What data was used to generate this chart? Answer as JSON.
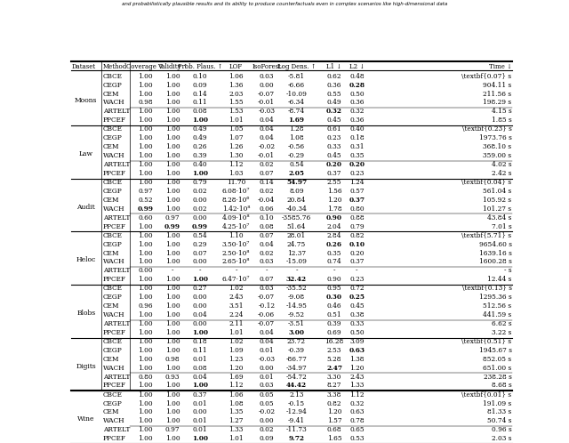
{
  "title": "and probabilistically plausible results and its ability to produce counterfactuals even in complex scenarios like high-dimensional data",
  "datasets": [
    {
      "name": "Moons",
      "rows": [
        [
          "CBCE",
          "1.00",
          "1.00",
          "0.10",
          "1.06",
          "0.03",
          "-5.81",
          "0.62",
          "0.48",
          "\\textbf{0.07} s"
        ],
        [
          "CEGP",
          "1.00",
          "1.00",
          "0.09",
          "1.36",
          "0.00",
          "-6.66",
          "0.36",
          "\\textbf{0.28}",
          "904.11 s"
        ],
        [
          "CEM",
          "1.00",
          "1.00",
          "0.14",
          "2.03",
          "-0.07",
          "-10.09",
          "0.55",
          "0.50",
          "211.56 s"
        ],
        [
          "WACH",
          "0.98",
          "1.00",
          "0.11",
          "1.55",
          "-0.01",
          "-6.34",
          "0.49",
          "0.36",
          "198.29 s"
        ]
      ],
      "sep_rows": [
        [
          "ARTELT",
          "1.00",
          "1.00",
          "0.08",
          "1.53",
          "-0.03",
          "-8.74",
          "\\textbf{0.32}",
          "0.32",
          "4.15 s"
        ],
        [
          "PPCEF",
          "1.00",
          "1.00",
          "\\textbf{1.00}",
          "1.01",
          "0.04",
          "\\textbf{1.69}",
          "0.45",
          "0.36",
          "1.85 s"
        ]
      ]
    },
    {
      "name": "Law",
      "rows": [
        [
          "CBCE",
          "1.00",
          "1.00",
          "0.49",
          "1.05",
          "0.04",
          "1.28",
          "0.61",
          "0.40",
          "\\textbf{0.23} s"
        ],
        [
          "CEGP",
          "1.00",
          "1.00",
          "0.49",
          "1.07",
          "0.04",
          "1.08",
          "0.23",
          "0.18",
          "1973.76 s"
        ],
        [
          "CEM",
          "1.00",
          "1.00",
          "0.26",
          "1.26",
          "-0.02",
          "-0.56",
          "0.33",
          "0.31",
          "368.10 s"
        ],
        [
          "WACH",
          "1.00",
          "1.00",
          "0.39",
          "1.30",
          "-0.01",
          "-0.29",
          "0.45",
          "0.35",
          "359.00 s"
        ]
      ],
      "sep_rows": [
        [
          "ARTELT",
          "1.00",
          "1.00",
          "0.40",
          "1.12",
          "0.02",
          "0.54",
          "\\textbf{0.20}",
          "\\textbf{0.20}",
          "4.02 s"
        ],
        [
          "PPCEF",
          "1.00",
          "1.00",
          "\\textbf{1.00}",
          "1.03",
          "0.07",
          "\\textbf{2.05}",
          "0.37",
          "0.23",
          "2.42 s"
        ]
      ]
    },
    {
      "name": "Audit",
      "rows": [
        [
          "CBCE",
          "1.00",
          "1.00",
          "0.79",
          "11.70",
          "0.14",
          "\\textbf{54.97}",
          "2.55",
          "1.24",
          "\\textbf{0.04} s"
        ],
        [
          "CEGP",
          "0.97",
          "1.00",
          "0.02",
          "6.08·10⁷",
          "0.02",
          "8.09",
          "1.56",
          "0.57",
          "561.04 s"
        ],
        [
          "CEM",
          "0.52",
          "1.00",
          "0.00",
          "8.28·10⁶",
          "-0.04",
          "20.84",
          "1.20",
          "\\textbf{0.37}",
          "105.92 s"
        ],
        [
          "WACH",
          "\\textbf{0.99}",
          "1.00",
          "0.02",
          "1.42·10⁸",
          "0.06",
          "-40.34",
          "1.78",
          "0.80",
          "101.27 s"
        ]
      ],
      "sep_rows": [
        [
          "ARTELT",
          "0.60",
          "0.97",
          "0.00",
          "4.09·10⁸",
          "0.10",
          "-3585.76",
          "\\textbf{0.90}",
          "0.88",
          "43.84 s"
        ],
        [
          "PPCEF",
          "1.00",
          "\\textbf{0.99}",
          "\\textbf{0.99}",
          "4.25·10⁷",
          "0.08",
          "51.64",
          "2.04",
          "0.79",
          "7.01 s"
        ]
      ]
    },
    {
      "name": "Heloc",
      "rows": [
        [
          "CBCE",
          "1.00",
          "1.00",
          "0.54",
          "1.10",
          "0.07",
          "28.01",
          "2.84",
          "0.82",
          "\\textbf{5.71} s"
        ],
        [
          "CEGP",
          "1.00",
          "1.00",
          "0.29",
          "3.50·10⁷",
          "0.04",
          "24.75",
          "\\textbf{0.26}",
          "\\textbf{0.10}",
          "9654.60 s"
        ],
        [
          "CEM",
          "1.00",
          "1.00",
          "0.07",
          "2.50·10⁸",
          "0.02",
          "12.37",
          "0.35",
          "0.20",
          "1639.16 s"
        ],
        [
          "WACH",
          "1.00",
          "1.00",
          "0.00",
          "2.65·10⁸",
          "0.03",
          "-15.09",
          "0.74",
          "0.37",
          "1600.28 s"
        ]
      ],
      "sep_rows": [
        [
          "ARTELT",
          "0.00",
          "-",
          "-",
          "-",
          "-",
          "-",
          "-",
          "-",
          "- s"
        ],
        [
          "PPCEF",
          "1.00",
          "1.00",
          "\\textbf{1.00}",
          "6.47·10⁷",
          "0.07",
          "\\textbf{32.42}",
          "0.90",
          "0.23",
          "12.44 s"
        ]
      ]
    },
    {
      "name": "Blobs",
      "rows": [
        [
          "CBCE",
          "1.00",
          "1.00",
          "0.27",
          "1.02",
          "0.03",
          "-35.52",
          "0.95",
          "0.72",
          "\\textbf{0.13} s"
        ],
        [
          "CEGP",
          "1.00",
          "1.00",
          "0.00",
          "2.43",
          "-0.07",
          "-9.08",
          "\\textbf{0.30}",
          "\\textbf{0.25}",
          "1295.36 s"
        ],
        [
          "CEM",
          "0.96",
          "1.00",
          "0.00",
          "3.51",
          "-0.12",
          "-14.95",
          "0.46",
          "0.45",
          "512.56 s"
        ],
        [
          "WACH",
          "1.00",
          "1.00",
          "0.04",
          "2.24",
          "-0.06",
          "-9.52",
          "0.51",
          "0.38",
          "441.59 s"
        ]
      ],
      "sep_rows": [
        [
          "ARTELT",
          "1.00",
          "1.00",
          "0.00",
          "2.11",
          "-0.07",
          "-3.51",
          "0.39",
          "0.33",
          "6.62 s"
        ],
        [
          "PPCEF",
          "1.00",
          "1.00",
          "\\textbf{1.00}",
          "1.01",
          "0.04",
          "\\textbf{3.00}",
          "0.69",
          "0.50",
          "3.22 s"
        ]
      ]
    },
    {
      "name": "Digits",
      "rows": [
        [
          "CBCE",
          "1.00",
          "1.00",
          "0.18",
          "1.02",
          "0.04",
          "23.72",
          "16.28",
          "3.09",
          "\\textbf{0.51} s"
        ],
        [
          "CEGP",
          "1.00",
          "1.00",
          "0.11",
          "1.09",
          "0.01",
          "-0.39",
          "2.53",
          "\\textbf{0.63}",
          "1945.67 s"
        ],
        [
          "CEM",
          "1.00",
          "0.98",
          "0.01",
          "1.23",
          "-0.03",
          "-86.77",
          "5.28",
          "1.38",
          "852.05 s"
        ],
        [
          "WACH",
          "1.00",
          "1.00",
          "0.08",
          "1.20",
          "0.00",
          "-34.97",
          "\\textbf{2.47}",
          "1.20",
          "651.00 s"
        ]
      ],
      "sep_rows": [
        [
          "ARTELT",
          "0.80",
          "0.93",
          "0.04",
          "1.69",
          "0.01",
          "-54.72",
          "3.30",
          "2.43",
          "238.28 s"
        ],
        [
          "PPCEF",
          "1.00",
          "1.00",
          "\\textbf{1.00}",
          "1.12",
          "0.03",
          "\\textbf{44.42}",
          "8.27",
          "1.33",
          "8.68 s"
        ]
      ]
    },
    {
      "name": "Wine",
      "rows": [
        [
          "CBCE",
          "1.00",
          "1.00",
          "0.37",
          "1.06",
          "0.05",
          "2.13",
          "3.38",
          "1.12",
          "\\textbf{0.01} s"
        ],
        [
          "CEGP",
          "1.00",
          "1.00",
          "0.01",
          "1.08",
          "0.05",
          "-0.15",
          "0.82",
          "0.32",
          "191.09 s"
        ],
        [
          "CEM",
          "1.00",
          "1.00",
          "0.00",
          "1.35",
          "-0.02",
          "-12.94",
          "1.20",
          "0.63",
          "81.33 s"
        ],
        [
          "WACH",
          "1.00",
          "1.00",
          "0.01",
          "1.27",
          "0.00",
          "-9.41",
          "1.57",
          "0.78",
          "50.74 s"
        ]
      ],
      "sep_rows": [
        [
          "ARTELT",
          "1.00",
          "0.97",
          "0.01",
          "1.33",
          "0.02",
          "-11.73",
          "0.68",
          "0.65",
          "0.96 s"
        ],
        [
          "PPCEF",
          "1.00",
          "1.00",
          "\\textbf{1.00}",
          "1.01",
          "0.09",
          "\\textbf{9.72}",
          "1.65",
          "0.53",
          "2.03 s"
        ]
      ]
    }
  ]
}
